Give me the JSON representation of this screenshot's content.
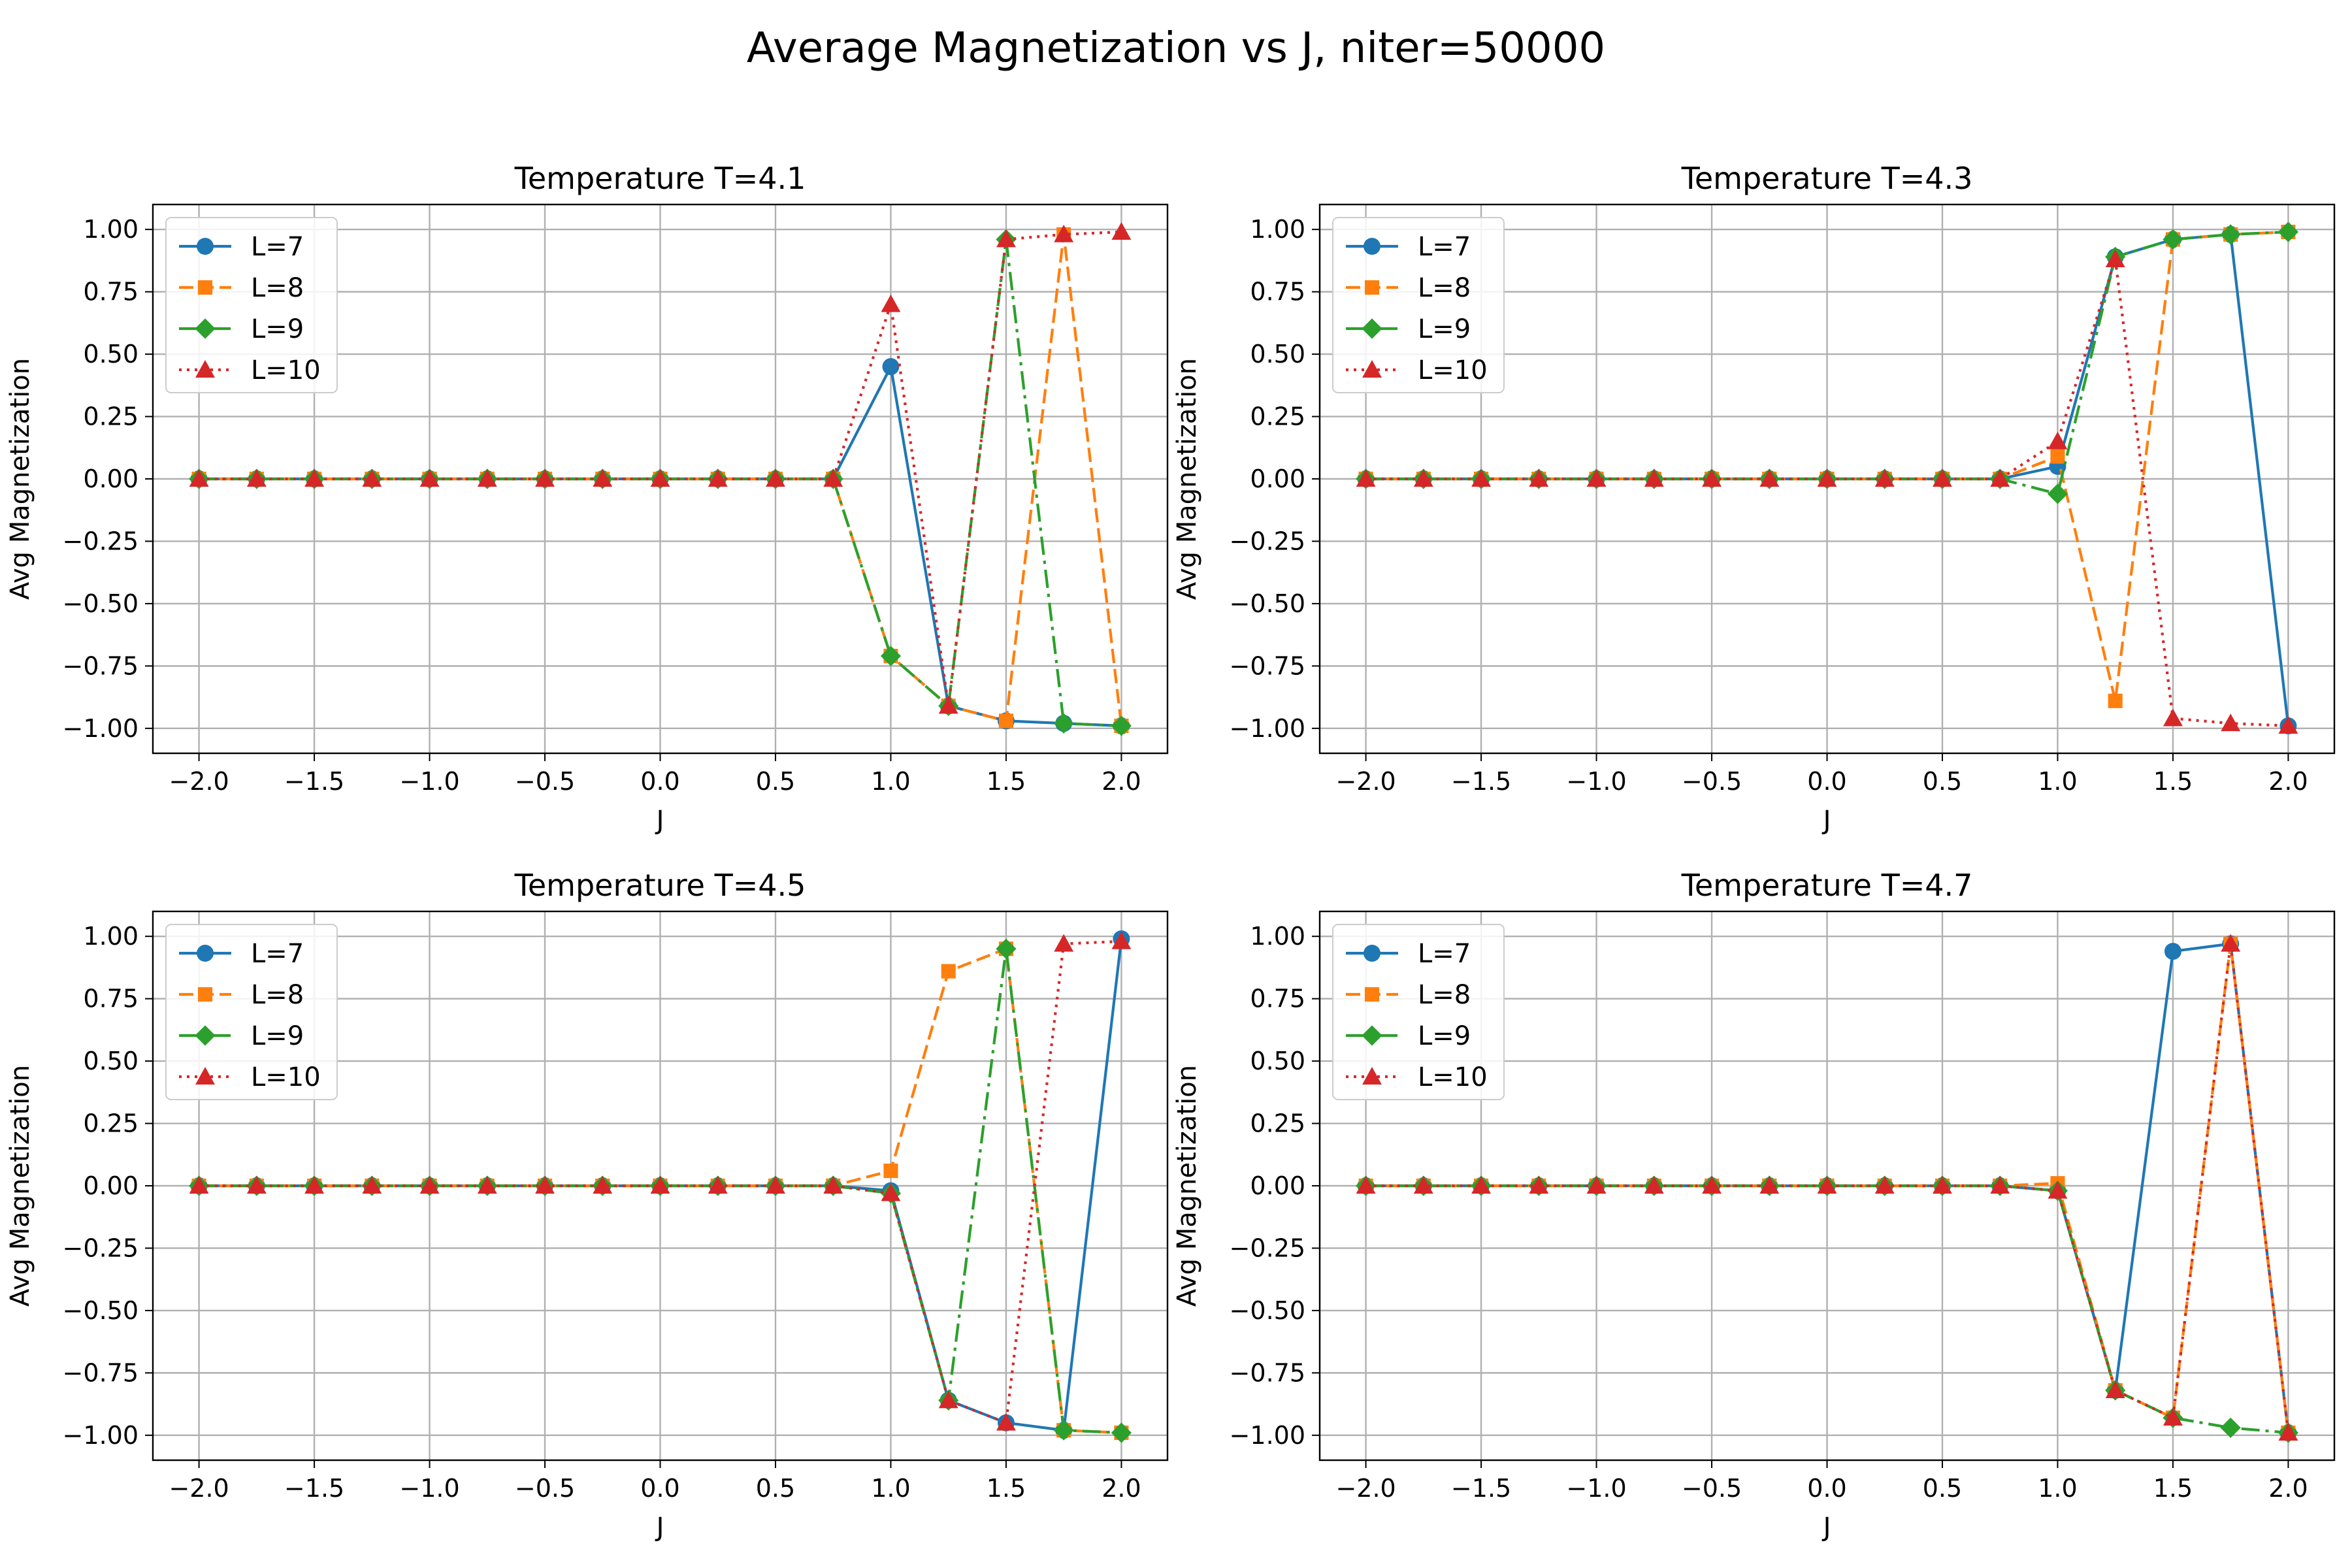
{
  "figure_title": "Average Magnetization vs J, niter=50000",
  "colors": {
    "L7": "#1f77b4",
    "L8": "#ff7f0e",
    "L9": "#2ca02c",
    "L10": "#d62728",
    "grid": "#b0b0b0"
  },
  "chart_data": [
    {
      "type": "line",
      "title": "Temperature T=4.1",
      "xlabel": "J",
      "ylabel": "Avg Magnetization",
      "x": [
        -2.0,
        -1.75,
        -1.5,
        -1.25,
        -1.0,
        -0.75,
        -0.5,
        -0.25,
        0.0,
        0.25,
        0.5,
        0.75,
        1.0,
        1.25,
        1.5,
        1.75,
        2.0
      ],
      "xlim": [
        -2.2,
        2.2
      ],
      "ylim": [
        -1.1,
        1.1
      ],
      "xticks": [
        "−2.0",
        "−1.5",
        "−1.0",
        "−0.5",
        "0.0",
        "0.5",
        "1.0",
        "1.5",
        "2.0"
      ],
      "yticks": [
        "−1.00",
        "−0.75",
        "−0.50",
        "−0.25",
        "0.00",
        "0.25",
        "0.50",
        "0.75",
        "1.00"
      ],
      "grid": true,
      "legend_position": "upper-left",
      "series": [
        {
          "name": "L=7",
          "values": [
            0,
            0,
            0,
            0,
            0,
            0,
            0,
            0,
            0,
            0,
            0,
            0,
            0.45,
            -0.91,
            -0.97,
            -0.98,
            -0.99
          ]
        },
        {
          "name": "L=8",
          "values": [
            0,
            0,
            0,
            0,
            0,
            0,
            0,
            0,
            0,
            0,
            0,
            0,
            -0.71,
            -0.91,
            -0.97,
            0.98,
            -0.99
          ]
        },
        {
          "name": "L=9",
          "values": [
            0,
            0,
            0,
            0,
            0,
            0,
            0,
            0,
            0,
            0,
            0,
            0,
            -0.71,
            -0.91,
            0.96,
            -0.98,
            -0.99
          ]
        },
        {
          "name": "L=10",
          "values": [
            0,
            0,
            0,
            0,
            0,
            0,
            0,
            0,
            0,
            0,
            0,
            0,
            0.7,
            -0.91,
            0.96,
            0.98,
            0.99
          ]
        }
      ]
    },
    {
      "type": "line",
      "title": "Temperature T=4.3",
      "xlabel": "J",
      "ylabel": "Avg Magnetization",
      "x": [
        -2.0,
        -1.75,
        -1.5,
        -1.25,
        -1.0,
        -0.75,
        -0.5,
        -0.25,
        0.0,
        0.25,
        0.5,
        0.75,
        1.0,
        1.25,
        1.5,
        1.75,
        2.0
      ],
      "xlim": [
        -2.2,
        2.2
      ],
      "ylim": [
        -1.1,
        1.1
      ],
      "xticks": [
        "−2.0",
        "−1.5",
        "−1.0",
        "−0.5",
        "0.0",
        "0.5",
        "1.0",
        "1.5",
        "2.0"
      ],
      "yticks": [
        "−1.00",
        "−0.75",
        "−0.50",
        "−0.25",
        "0.00",
        "0.25",
        "0.50",
        "0.75",
        "1.00"
      ],
      "grid": true,
      "legend_position": "upper-left",
      "series": [
        {
          "name": "L=7",
          "values": [
            0,
            0,
            0,
            0,
            0,
            0,
            0,
            0,
            0,
            0,
            0,
            0,
            0.05,
            0.89,
            0.96,
            0.98,
            -0.99
          ]
        },
        {
          "name": "L=8",
          "values": [
            0,
            0,
            0,
            0,
            0,
            0,
            0,
            0,
            0,
            0,
            0,
            0,
            0.09,
            -0.89,
            0.96,
            0.98,
            0.99
          ]
        },
        {
          "name": "L=9",
          "values": [
            0,
            0,
            0,
            0,
            0,
            0,
            0,
            0,
            0,
            0,
            0,
            0,
            -0.06,
            0.89,
            0.96,
            0.98,
            0.99
          ]
        },
        {
          "name": "L=10",
          "values": [
            0,
            0,
            0,
            0,
            0,
            0,
            0,
            0,
            0,
            0,
            0,
            0,
            0.15,
            0.88,
            -0.96,
            -0.98,
            -0.99
          ]
        }
      ]
    },
    {
      "type": "line",
      "title": "Temperature T=4.5",
      "xlabel": "J",
      "ylabel": "Avg Magnetization",
      "x": [
        -2.0,
        -1.75,
        -1.5,
        -1.25,
        -1.0,
        -0.75,
        -0.5,
        -0.25,
        0.0,
        0.25,
        0.5,
        0.75,
        1.0,
        1.25,
        1.5,
        1.75,
        2.0
      ],
      "xlim": [
        -2.2,
        2.2
      ],
      "ylim": [
        -1.1,
        1.1
      ],
      "xticks": [
        "−2.0",
        "−1.5",
        "−1.0",
        "−0.5",
        "0.0",
        "0.5",
        "1.0",
        "1.5",
        "2.0"
      ],
      "yticks": [
        "−1.00",
        "−0.75",
        "−0.50",
        "−0.25",
        "0.00",
        "0.25",
        "0.50",
        "0.75",
        "1.00"
      ],
      "grid": true,
      "legend_position": "upper-left",
      "series": [
        {
          "name": "L=7",
          "values": [
            0,
            0,
            0,
            0,
            0,
            0,
            0,
            0,
            0,
            0,
            0,
            0,
            -0.02,
            -0.86,
            -0.95,
            -0.98,
            0.99
          ]
        },
        {
          "name": "L=8",
          "values": [
            0,
            0,
            0,
            0,
            0,
            0,
            0,
            0,
            0,
            0,
            0,
            0,
            0.06,
            0.86,
            0.95,
            -0.98,
            -0.99
          ]
        },
        {
          "name": "L=9",
          "values": [
            0,
            0,
            0,
            0,
            0,
            0,
            0,
            0,
            0,
            0,
            0,
            0,
            -0.03,
            -0.86,
            0.95,
            -0.98,
            -0.99
          ]
        },
        {
          "name": "L=10",
          "values": [
            0,
            0,
            0,
            0,
            0,
            0,
            0,
            0,
            0,
            0,
            0,
            0,
            -0.03,
            -0.86,
            -0.95,
            0.97,
            0.98
          ]
        }
      ]
    },
    {
      "type": "line",
      "title": "Temperature T=4.7",
      "xlabel": "J",
      "ylabel": "Avg Magnetization",
      "x": [
        -2.0,
        -1.75,
        -1.5,
        -1.25,
        -1.0,
        -0.75,
        -0.5,
        -0.25,
        0.0,
        0.25,
        0.5,
        0.75,
        1.0,
        1.25,
        1.5,
        1.75,
        2.0
      ],
      "xlim": [
        -2.2,
        2.2
      ],
      "ylim": [
        -1.1,
        1.1
      ],
      "xticks": [
        "−2.0",
        "−1.5",
        "−1.0",
        "−0.5",
        "0.0",
        "0.5",
        "1.0",
        "1.5",
        "2.0"
      ],
      "yticks": [
        "−1.00",
        "−0.75",
        "−0.50",
        "−0.25",
        "0.00",
        "0.25",
        "0.50",
        "0.75",
        "1.00"
      ],
      "grid": true,
      "legend_position": "upper-left",
      "series": [
        {
          "name": "L=7",
          "values": [
            0,
            0,
            0,
            0,
            0,
            0,
            0,
            0,
            0,
            0,
            0,
            0,
            -0.02,
            -0.82,
            0.94,
            0.97,
            -0.99
          ]
        },
        {
          "name": "L=8",
          "values": [
            0,
            0,
            0,
            0,
            0,
            0,
            0,
            0,
            0,
            0,
            0,
            0,
            0.01,
            -0.82,
            -0.93,
            0.97,
            -0.99
          ]
        },
        {
          "name": "L=9",
          "values": [
            0,
            0,
            0,
            0,
            0,
            0,
            0,
            0,
            0,
            0,
            0,
            0,
            -0.02,
            -0.82,
            -0.93,
            -0.97,
            -0.99
          ]
        },
        {
          "name": "L=10",
          "values": [
            0,
            0,
            0,
            0,
            0,
            0,
            0,
            0,
            0,
            0,
            0,
            0,
            -0.02,
            -0.82,
            -0.93,
            0.97,
            -0.99
          ]
        }
      ]
    }
  ]
}
